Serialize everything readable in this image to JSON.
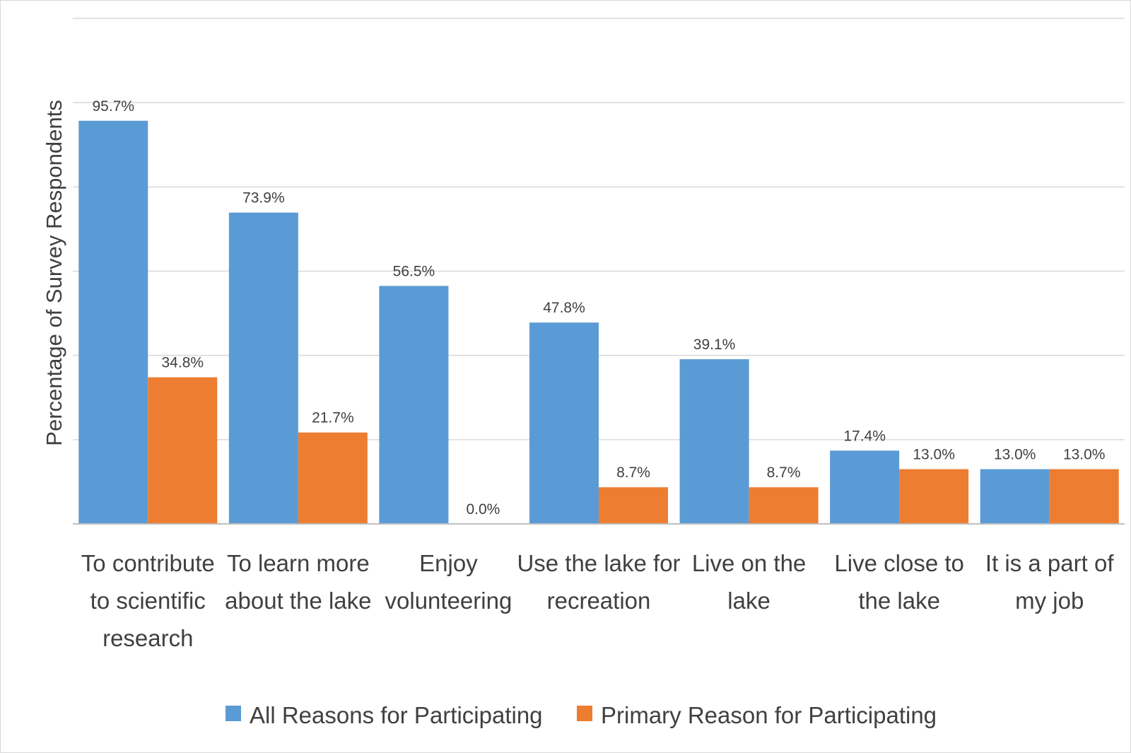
{
  "chart_data": {
    "type": "bar",
    "title": "",
    "xlabel": "",
    "ylabel": "Percentage of Survey Respondents",
    "ylim": [
      0,
      120
    ],
    "y_gridline_step": 20,
    "grid": true,
    "legend_position": "bottom",
    "categories": [
      [
        "To contribute",
        "to scientific",
        "research"
      ],
      [
        "To learn more",
        "about the lake"
      ],
      [
        "Enjoy",
        "volunteering"
      ],
      [
        "Use the lake for",
        "recreation"
      ],
      [
        "Live on the",
        "lake"
      ],
      [
        "Live close to",
        "the lake"
      ],
      [
        "It is a part of",
        "my job"
      ]
    ],
    "series": [
      {
        "name": "All Reasons for Participating",
        "color": "#5b9bd5",
        "values": [
          95.7,
          73.9,
          56.5,
          47.8,
          39.1,
          17.4,
          13.0
        ],
        "labels": [
          "95.7%",
          "73.9%",
          "56.5%",
          "47.8%",
          "39.1%",
          "17.4%",
          "13.0%"
        ]
      },
      {
        "name": "Primary Reason for Participating",
        "color": "#ed7d31",
        "values": [
          34.8,
          21.7,
          0.0,
          8.7,
          8.7,
          13.0,
          13.0
        ],
        "labels": [
          "34.8%",
          "21.7%",
          "0.0%",
          "8.7%",
          "8.7%",
          "13.0%",
          "13.0%"
        ]
      }
    ]
  }
}
